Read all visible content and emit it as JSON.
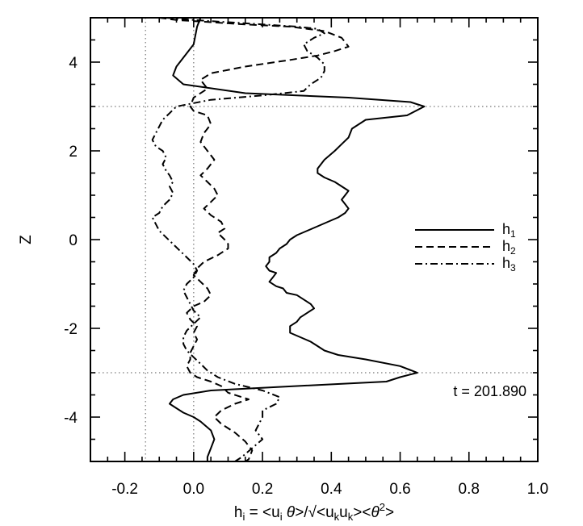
{
  "chart_data": {
    "type": "line",
    "title": "",
    "xlabel": "h_i = <u_i θ>/√<u_k u_k><θ²>",
    "xlabel_parts": {
      "h": "h",
      "i1": "i",
      "eq": " = <u",
      "i2": "i",
      "theta1": " θ",
      "mid": ">/√<u",
      "k1": "k",
      "u2": "u",
      "k2": "k",
      "end1": "><",
      "theta2": "θ",
      "sq": "2",
      "end2": ">"
    },
    "ylabel": "Z",
    "xlim": [
      -0.3,
      1.0
    ],
    "ylim": [
      -5,
      5
    ],
    "x_ticks": [
      "-0.2",
      "0.0",
      "0.2",
      "0.4",
      "0.6",
      "0.8",
      "1.0"
    ],
    "x_tick_values": [
      -0.2,
      0.0,
      0.2,
      0.4,
      0.6,
      0.8,
      1.0
    ],
    "y_ticks": [
      "-4",
      "-2",
      "0",
      "2",
      "4"
    ],
    "y_tick_values": [
      -4,
      -2,
      0,
      2,
      4
    ],
    "reference_lines": {
      "vertical": [
        -0.14,
        0.0
      ],
      "horizontal": [
        3.0,
        -3.0
      ]
    },
    "annotation": "t = 201.890",
    "legend_position": "right",
    "series": [
      {
        "name": "h1",
        "label_base": "h",
        "label_sub": "1",
        "style": "solid",
        "points": [
          [
            0.02,
            5.0
          ],
          [
            0.01,
            4.8
          ],
          [
            0.0,
            4.4
          ],
          [
            -0.02,
            4.2
          ],
          [
            -0.05,
            3.9
          ],
          [
            -0.06,
            3.7
          ],
          [
            -0.03,
            3.5
          ],
          [
            0.15,
            3.3
          ],
          [
            0.45,
            3.2
          ],
          [
            0.63,
            3.1
          ],
          [
            0.67,
            3.0
          ],
          [
            0.62,
            2.8
          ],
          [
            0.5,
            2.7
          ],
          [
            0.46,
            2.5
          ],
          [
            0.45,
            2.3
          ],
          [
            0.43,
            2.15
          ],
          [
            0.41,
            2.0
          ],
          [
            0.38,
            1.8
          ],
          [
            0.36,
            1.6
          ],
          [
            0.36,
            1.5
          ],
          [
            0.38,
            1.4
          ],
          [
            0.41,
            1.3
          ],
          [
            0.43,
            1.2
          ],
          [
            0.45,
            1.1
          ],
          [
            0.44,
            1.0
          ],
          [
            0.43,
            0.9
          ],
          [
            0.44,
            0.8
          ],
          [
            0.45,
            0.7
          ],
          [
            0.44,
            0.6
          ],
          [
            0.42,
            0.5
          ],
          [
            0.39,
            0.4
          ],
          [
            0.36,
            0.3
          ],
          [
            0.33,
            0.2
          ],
          [
            0.3,
            0.1
          ],
          [
            0.28,
            0.0
          ],
          [
            0.27,
            -0.1
          ],
          [
            0.25,
            -0.2
          ],
          [
            0.24,
            -0.3
          ],
          [
            0.22,
            -0.4
          ],
          [
            0.22,
            -0.5
          ],
          [
            0.21,
            -0.6
          ],
          [
            0.22,
            -0.7
          ],
          [
            0.24,
            -0.75
          ],
          [
            0.23,
            -0.85
          ],
          [
            0.22,
            -0.95
          ],
          [
            0.24,
            -1.05
          ],
          [
            0.26,
            -1.1
          ],
          [
            0.27,
            -1.2
          ],
          [
            0.3,
            -1.25
          ],
          [
            0.32,
            -1.35
          ],
          [
            0.34,
            -1.45
          ],
          [
            0.35,
            -1.55
          ],
          [
            0.33,
            -1.65
          ],
          [
            0.31,
            -1.75
          ],
          [
            0.3,
            -1.85
          ],
          [
            0.28,
            -1.95
          ],
          [
            0.28,
            -2.1
          ],
          [
            0.31,
            -2.2
          ],
          [
            0.34,
            -2.3
          ],
          [
            0.36,
            -2.4
          ],
          [
            0.38,
            -2.5
          ],
          [
            0.42,
            -2.6
          ],
          [
            0.5,
            -2.7
          ],
          [
            0.6,
            -2.85
          ],
          [
            0.65,
            -3.0
          ],
          [
            0.6,
            -3.1
          ],
          [
            0.56,
            -3.2
          ],
          [
            0.3,
            -3.3
          ],
          [
            0.05,
            -3.4
          ],
          [
            -0.03,
            -3.5
          ],
          [
            -0.06,
            -3.6
          ],
          [
            -0.07,
            -3.7
          ],
          [
            -0.05,
            -3.8
          ],
          [
            -0.03,
            -3.9
          ],
          [
            0.0,
            -4.0
          ],
          [
            0.02,
            -4.1
          ],
          [
            0.05,
            -4.3
          ],
          [
            0.06,
            -4.5
          ],
          [
            0.05,
            -4.7
          ],
          [
            0.04,
            -4.9
          ],
          [
            0.04,
            -5.0
          ]
        ]
      },
      {
        "name": "h2",
        "label_base": "h",
        "label_sub": "2",
        "style": "dashed",
        "points": [
          [
            -0.1,
            5.0
          ],
          [
            -0.05,
            4.95
          ],
          [
            0.05,
            4.9
          ],
          [
            0.15,
            4.85
          ],
          [
            0.28,
            4.8
          ],
          [
            0.38,
            4.7
          ],
          [
            0.43,
            4.55
          ],
          [
            0.45,
            4.35
          ],
          [
            0.41,
            4.25
          ],
          [
            0.36,
            4.15
          ],
          [
            0.28,
            4.05
          ],
          [
            0.15,
            3.9
          ],
          [
            0.05,
            3.75
          ],
          [
            0.02,
            3.6
          ],
          [
            0.04,
            3.4
          ],
          [
            0.0,
            3.2
          ],
          [
            -0.01,
            3.0
          ],
          [
            0.0,
            2.9
          ],
          [
            0.04,
            2.8
          ],
          [
            0.05,
            2.6
          ],
          [
            0.03,
            2.4
          ],
          [
            0.02,
            2.2
          ],
          [
            0.04,
            2.0
          ],
          [
            0.06,
            1.8
          ],
          [
            0.04,
            1.6
          ],
          [
            0.02,
            1.45
          ],
          [
            0.04,
            1.3
          ],
          [
            0.06,
            1.15
          ],
          [
            0.07,
            1.0
          ],
          [
            0.05,
            0.85
          ],
          [
            0.03,
            0.7
          ],
          [
            0.05,
            0.55
          ],
          [
            0.08,
            0.4
          ],
          [
            0.09,
            0.25
          ],
          [
            0.07,
            0.15
          ],
          [
            0.09,
            0.0
          ],
          [
            0.1,
            -0.1
          ],
          [
            0.1,
            -0.2
          ],
          [
            0.07,
            -0.35
          ],
          [
            0.03,
            -0.5
          ],
          [
            0.01,
            -0.65
          ],
          [
            0.0,
            -0.8
          ],
          [
            0.02,
            -0.95
          ],
          [
            0.04,
            -1.1
          ],
          [
            0.05,
            -1.25
          ],
          [
            0.03,
            -1.4
          ],
          [
            0.0,
            -1.5
          ],
          [
            -0.02,
            -1.65
          ],
          [
            -0.01,
            -1.8
          ],
          [
            0.01,
            -1.95
          ],
          [
            0.0,
            -2.1
          ],
          [
            0.01,
            -2.25
          ],
          [
            0.0,
            -2.4
          ],
          [
            -0.01,
            -2.55
          ],
          [
            -0.01,
            -2.7
          ],
          [
            -0.02,
            -2.85
          ],
          [
            -0.01,
            -3.0
          ],
          [
            0.01,
            -3.1
          ],
          [
            0.05,
            -3.2
          ],
          [
            0.08,
            -3.3
          ],
          [
            0.1,
            -3.45
          ],
          [
            0.16,
            -3.6
          ],
          [
            0.12,
            -3.7
          ],
          [
            0.08,
            -3.85
          ],
          [
            0.06,
            -4.0
          ],
          [
            0.08,
            -4.15
          ],
          [
            0.12,
            -4.35
          ],
          [
            0.15,
            -4.55
          ],
          [
            0.17,
            -4.75
          ],
          [
            0.16,
            -4.95
          ],
          [
            0.15,
            -5.0
          ]
        ]
      },
      {
        "name": "h3",
        "label_base": "h",
        "label_sub": "3",
        "style": "dashdot",
        "points": [
          [
            -0.08,
            5.0
          ],
          [
            0.0,
            4.95
          ],
          [
            0.1,
            4.9
          ],
          [
            0.2,
            4.85
          ],
          [
            0.3,
            4.8
          ],
          [
            0.36,
            4.75
          ],
          [
            0.38,
            4.65
          ],
          [
            0.35,
            4.55
          ],
          [
            0.32,
            4.4
          ],
          [
            0.33,
            4.25
          ],
          [
            0.36,
            4.1
          ],
          [
            0.38,
            3.95
          ],
          [
            0.38,
            3.8
          ],
          [
            0.37,
            3.65
          ],
          [
            0.34,
            3.5
          ],
          [
            0.32,
            3.35
          ],
          [
            0.2,
            3.25
          ],
          [
            0.05,
            3.15
          ],
          [
            -0.05,
            3.0
          ],
          [
            -0.07,
            2.85
          ],
          [
            -0.09,
            2.7
          ],
          [
            -0.1,
            2.55
          ],
          [
            -0.11,
            2.4
          ],
          [
            -0.12,
            2.25
          ],
          [
            -0.11,
            2.1
          ],
          [
            -0.09,
            2.0
          ],
          [
            -0.08,
            1.85
          ],
          [
            -0.09,
            1.7
          ],
          [
            -0.08,
            1.55
          ],
          [
            -0.07,
            1.45
          ],
          [
            -0.06,
            1.3
          ],
          [
            -0.07,
            1.2
          ],
          [
            -0.06,
            1.05
          ],
          [
            -0.07,
            0.9
          ],
          [
            -0.09,
            0.75
          ],
          [
            -0.1,
            0.6
          ],
          [
            -0.12,
            0.5
          ],
          [
            -0.11,
            0.35
          ],
          [
            -0.1,
            0.2
          ],
          [
            -0.08,
            0.05
          ],
          [
            -0.06,
            -0.1
          ],
          [
            -0.04,
            -0.25
          ],
          [
            -0.02,
            -0.4
          ],
          [
            0.0,
            -0.55
          ],
          [
            0.01,
            -0.7
          ],
          [
            0.0,
            -0.85
          ],
          [
            -0.02,
            -1.0
          ],
          [
            -0.03,
            -1.15
          ],
          [
            -0.02,
            -1.3
          ],
          [
            -0.01,
            -1.45
          ],
          [
            0.0,
            -1.6
          ],
          [
            0.02,
            -1.75
          ],
          [
            0.0,
            -1.9
          ],
          [
            -0.02,
            -2.05
          ],
          [
            -0.03,
            -2.2
          ],
          [
            -0.03,
            -2.35
          ],
          [
            -0.02,
            -2.5
          ],
          [
            0.0,
            -2.65
          ],
          [
            0.02,
            -2.8
          ],
          [
            0.04,
            -2.95
          ],
          [
            0.07,
            -3.1
          ],
          [
            0.12,
            -3.25
          ],
          [
            0.2,
            -3.4
          ],
          [
            0.25,
            -3.55
          ],
          [
            0.24,
            -3.7
          ],
          [
            0.2,
            -3.85
          ],
          [
            0.2,
            -4.0
          ],
          [
            0.19,
            -4.15
          ],
          [
            0.18,
            -4.3
          ],
          [
            0.2,
            -4.5
          ],
          [
            0.17,
            -4.7
          ],
          [
            0.14,
            -4.9
          ],
          [
            0.12,
            -5.0
          ]
        ]
      }
    ]
  }
}
